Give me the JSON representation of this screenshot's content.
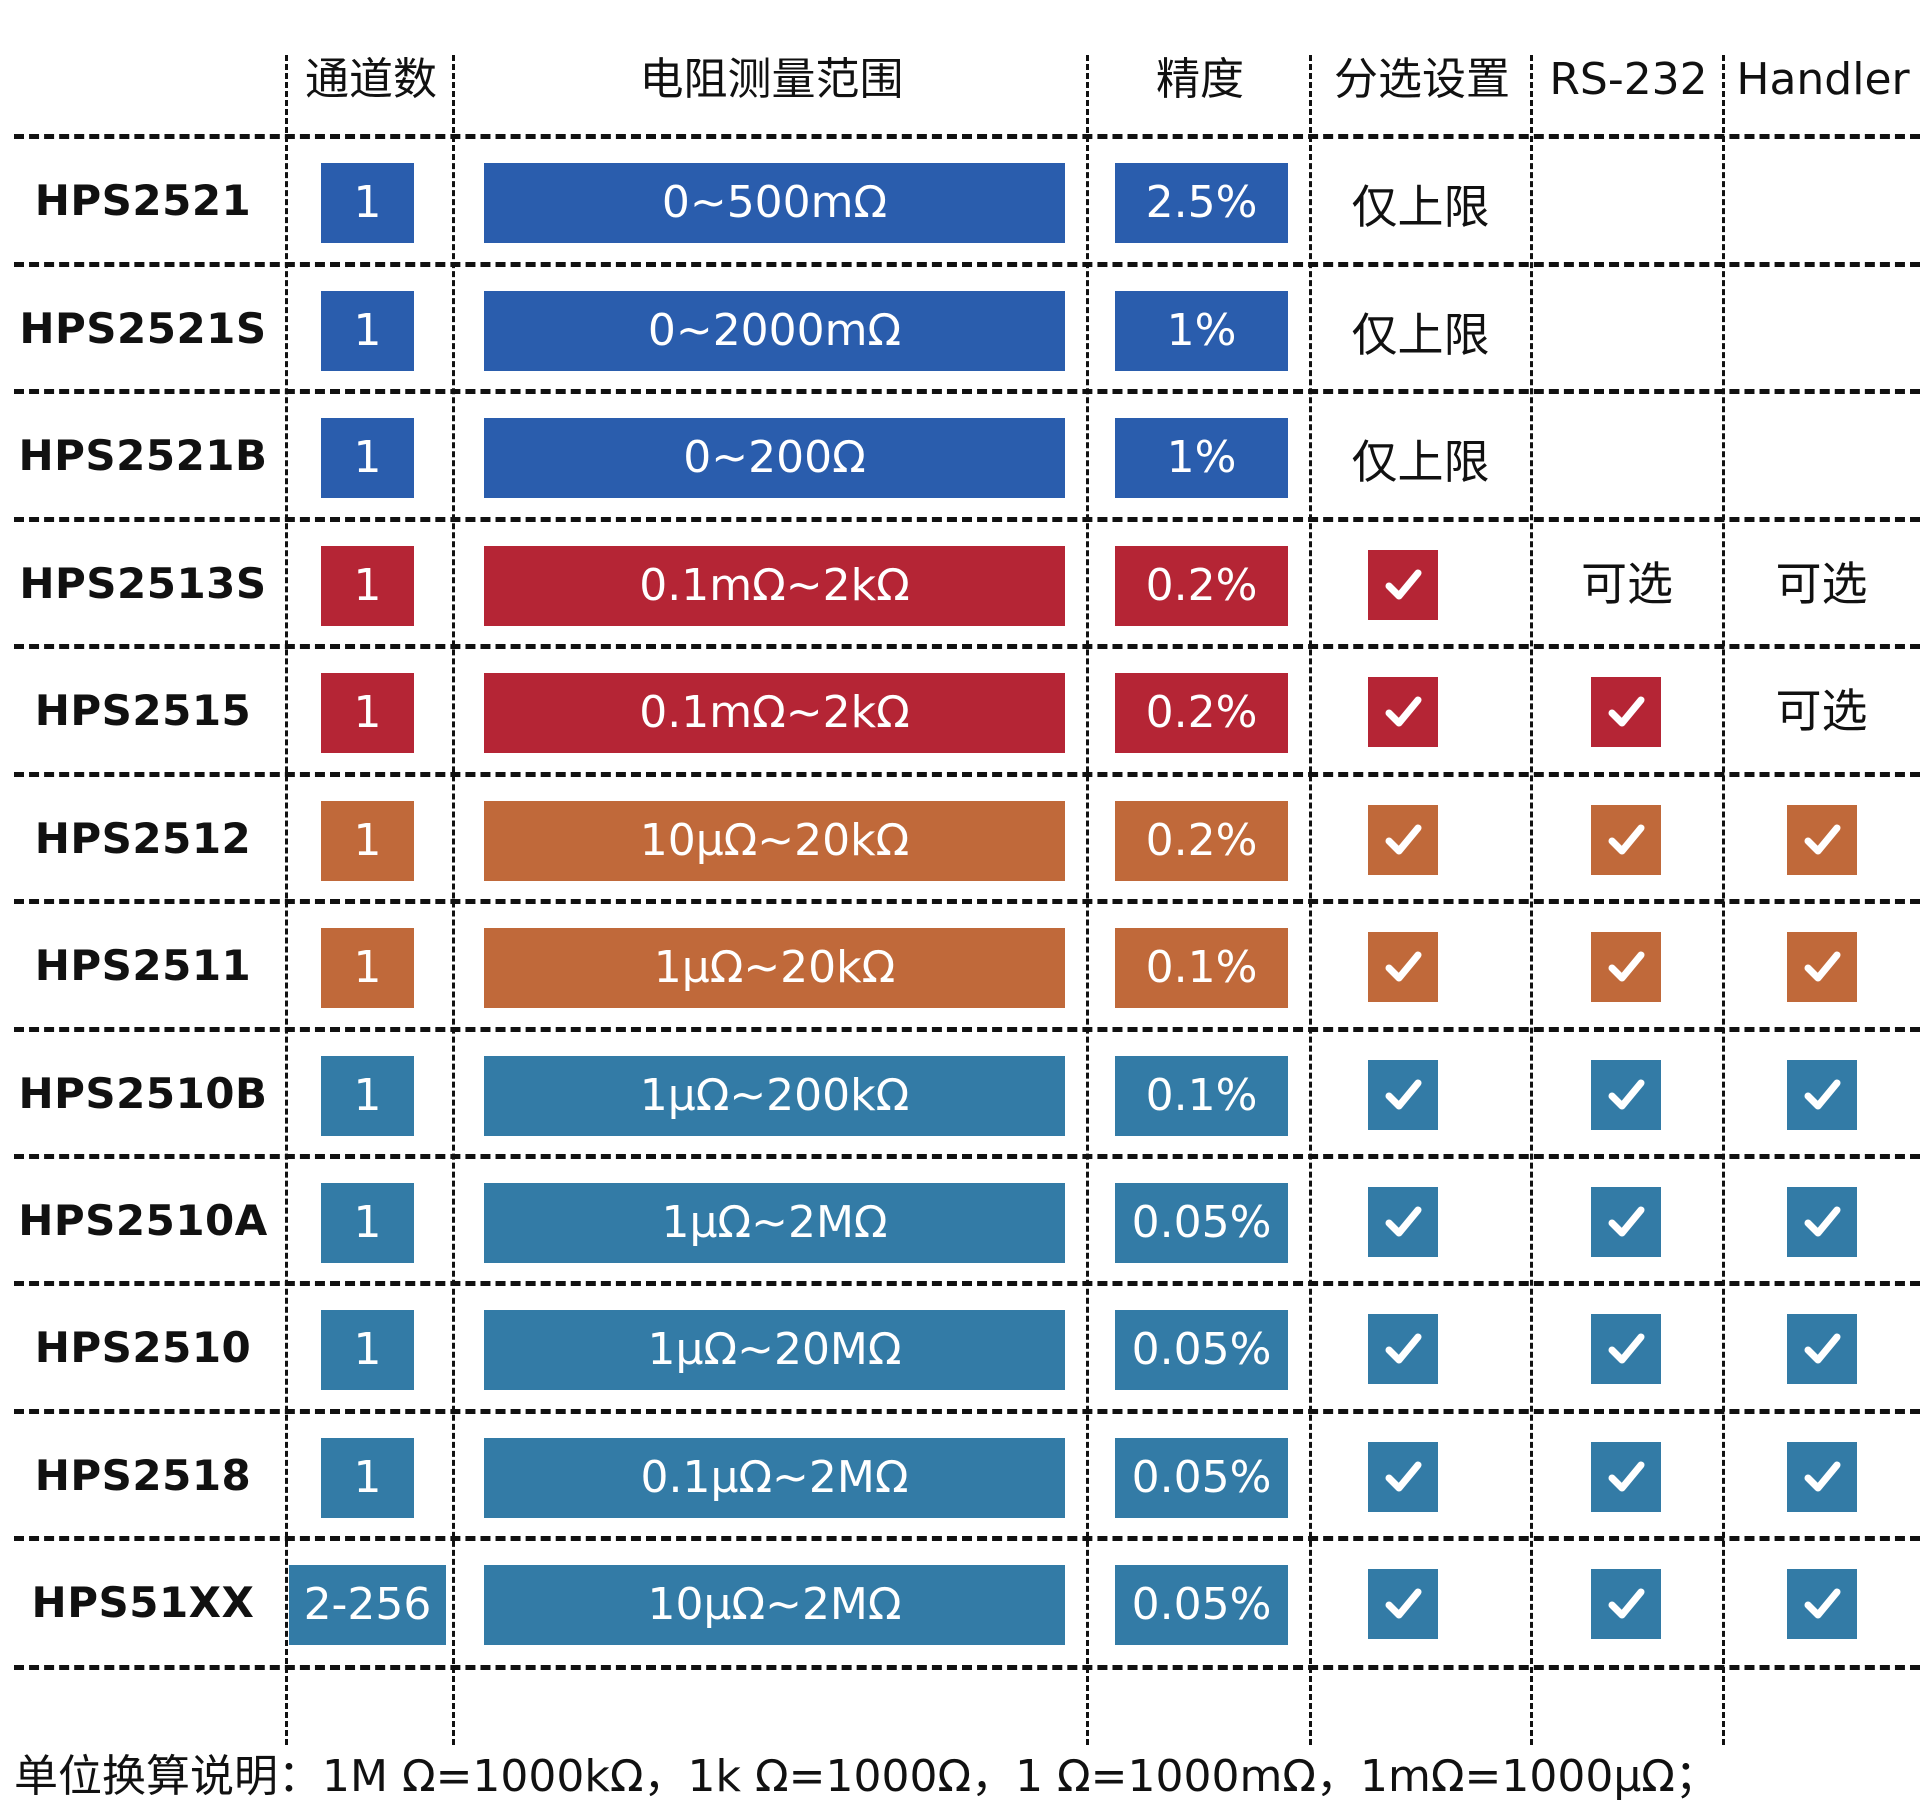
{
  "colors": {
    "blue": "#2A5DAD",
    "red": "#B52535",
    "orange": "#C0693A",
    "teal": "#337BA6"
  },
  "headers": {
    "channels": "通道数",
    "range": "电阻测量范围",
    "precision": "精度",
    "sorting": "分选设置",
    "rs232": "RS-232",
    "handler": "Handler"
  },
  "rows": [
    {
      "model": "HPS2521",
      "channels": "1",
      "range": "0~500mΩ",
      "precision": "2.5%",
      "color": "blue",
      "sorting": "仅上限",
      "rs232": "",
      "handler": ""
    },
    {
      "model": "HPS2521S",
      "channels": "1",
      "range": "0~2000mΩ",
      "precision": "1%",
      "color": "blue",
      "sorting": "仅上限",
      "rs232": "",
      "handler": ""
    },
    {
      "model": "HPS2521B",
      "channels": "1",
      "range": "0~200Ω",
      "precision": "1%",
      "color": "blue",
      "sorting": "仅上限",
      "rs232": "",
      "handler": ""
    },
    {
      "model": "HPS2513S",
      "channels": "1",
      "range": "0.1mΩ~2kΩ",
      "precision": "0.2%",
      "color": "red",
      "sorting": "check",
      "rs232": "可选",
      "handler": "可选"
    },
    {
      "model": "HPS2515",
      "channels": "1",
      "range": "0.1mΩ~2kΩ",
      "precision": "0.2%",
      "color": "red",
      "sorting": "check",
      "rs232": "check",
      "handler": "可选"
    },
    {
      "model": "HPS2512",
      "channels": "1",
      "range": "10μΩ~20kΩ",
      "precision": "0.2%",
      "color": "orange",
      "sorting": "check",
      "rs232": "check",
      "handler": "check"
    },
    {
      "model": "HPS2511",
      "channels": "1",
      "range": "1μΩ~20kΩ",
      "precision": "0.1%",
      "color": "orange",
      "sorting": "check",
      "rs232": "check",
      "handler": "check"
    },
    {
      "model": "HPS2510B",
      "channels": "1",
      "range": "1μΩ~200kΩ",
      "precision": "0.1%",
      "color": "teal",
      "sorting": "check",
      "rs232": "check",
      "handler": "check"
    },
    {
      "model": "HPS2510A",
      "channels": "1",
      "range": "1μΩ~2MΩ",
      "precision": "0.05%",
      "color": "teal",
      "sorting": "check",
      "rs232": "check",
      "handler": "check"
    },
    {
      "model": "HPS2510",
      "channels": "1",
      "range": "1μΩ~20MΩ",
      "precision": "0.05%",
      "color": "teal",
      "sorting": "check",
      "rs232": "check",
      "handler": "check"
    },
    {
      "model": "HPS2518",
      "channels": "1",
      "range": "0.1μΩ~2MΩ",
      "precision": "0.05%",
      "color": "teal",
      "sorting": "check",
      "rs232": "check",
      "handler": "check"
    },
    {
      "model": "HPS51XX",
      "channels": "2-256",
      "range": "10μΩ~2MΩ",
      "precision": "0.05%",
      "color": "teal",
      "sorting": "check",
      "rs232": "check",
      "handler": "check"
    }
  ],
  "icons": {
    "check": "checkmark-icon"
  },
  "footer": "单位换算说明：1M Ω=1000kΩ，1k Ω=1000Ω，1 Ω=1000mΩ，1mΩ=1000μΩ；"
}
